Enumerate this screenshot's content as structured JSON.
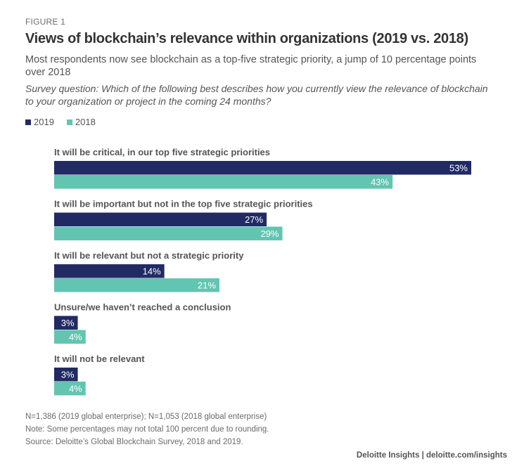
{
  "figure_label": "FIGURE 1",
  "colors": {
    "series_2019": "#222a63",
    "series_2018": "#62c5b1",
    "label_text": "#ffffff"
  },
  "chart_data": {
    "type": "bar",
    "orientation": "horizontal",
    "title": "Views of blockchain’s relevance within organizations (2019 vs. 2018)",
    "subtitle": "Most respondents now see blockchain as a top-five strategic priority, a jump of 10 percentage points over 2018",
    "question": "Survey question: Which of the following best describes how you currently view the relevance of blockchain to your organization or project in the coming 24 months?",
    "xlabel": "",
    "ylabel": "",
    "xlim": [
      0,
      53
    ],
    "grid": false,
    "legend_position": "top-left",
    "categories": [
      "It will be critical, in our top five strategic priorities",
      "It will be important but not in the top five strategic priorities",
      "It will be relevant but not a strategic priority",
      "Unsure/we haven’t reached a conclusion",
      "It will not be relevant"
    ],
    "series": [
      {
        "name": "2019",
        "values": [
          53,
          27,
          14,
          3,
          3
        ],
        "labels": [
          "53%",
          "27%",
          "14%",
          "3%",
          "3%"
        ]
      },
      {
        "name": "2018",
        "values": [
          43,
          29,
          21,
          4,
          4
        ],
        "labels": [
          "43%",
          "29%",
          "21%",
          "4%",
          "4%"
        ]
      }
    ]
  },
  "legend": [
    {
      "label": "2019"
    },
    {
      "label": "2018"
    }
  ],
  "notes": {
    "sample": "N=1,386 (2019 global enterprise); N=1,053 (2018 global enterprise)",
    "note": "Note: Some percentages may not total 100 percent due to rounding.",
    "source": "Source: Deloitte’s Global Blockchain Survey, 2018 and 2019."
  },
  "credit": "Deloitte Insights | deloitte.com/insights"
}
